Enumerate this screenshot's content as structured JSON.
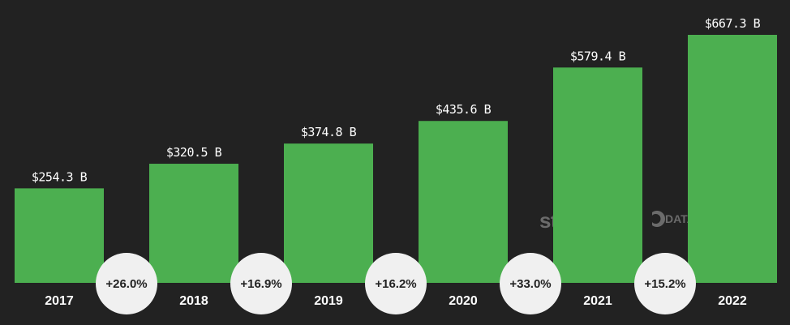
{
  "chart_data": {
    "type": "bar",
    "categories": [
      "2017",
      "2018",
      "2019",
      "2020",
      "2021",
      "2022"
    ],
    "values": [
      254.3,
      320.5,
      374.8,
      435.6,
      579.4,
      667.3
    ],
    "value_labels": [
      "$254.3 B",
      "$320.5 B",
      "$374.8 B",
      "$435.6 B",
      "$579.4 B",
      "$667.3 B"
    ],
    "growth_labels": [
      "+26.0%",
      "+16.9%",
      "+16.2%",
      "+33.0%",
      "+15.2%"
    ],
    "ylim": [
      0,
      667.3
    ],
    "grid": false,
    "colors": {
      "bar": "#4caf50",
      "background": "#222222",
      "badge": "#f0f0f0",
      "badge_text": "#222222",
      "text": "#ffffff",
      "watermark": "#6b6b6b"
    }
  },
  "watermarks": {
    "statista": "statista",
    "datareportal": "DATAREPORTAL"
  }
}
